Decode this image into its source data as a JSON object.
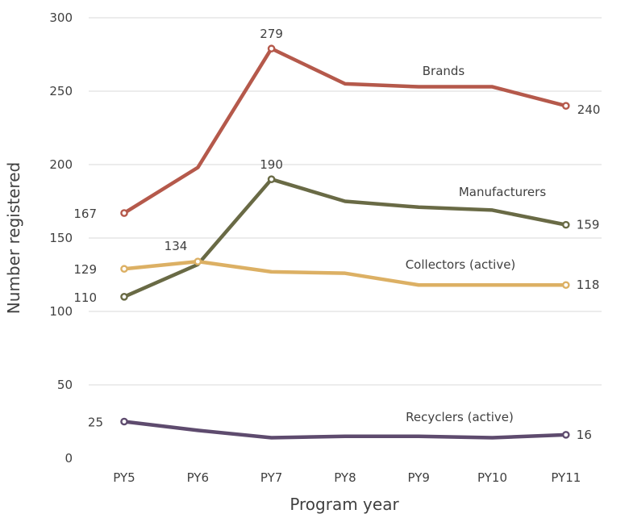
{
  "chart_data": {
    "type": "line",
    "xlabel": "Program year",
    "ylabel": "Number registered",
    "ylim": [
      0,
      300
    ],
    "yticks": [
      0,
      50,
      100,
      150,
      200,
      250,
      300
    ],
    "grid": true,
    "legend": "none",
    "categories": [
      "PY5",
      "PY6",
      "PY7",
      "PY8",
      "PY9",
      "PY10",
      "PY11"
    ],
    "series": [
      {
        "name": "Brands",
        "color": "#b5594b",
        "values": [
          167,
          198,
          279,
          255,
          253,
          253,
          240
        ],
        "labels": [
          {
            "i": 0,
            "text": "167"
          },
          {
            "i": 2,
            "text": "279"
          },
          {
            "i": 6,
            "text": "240"
          }
        ]
      },
      {
        "name": "Manufacturers",
        "color": "#696a45",
        "values": [
          110,
          132,
          190,
          175,
          171,
          169,
          159
        ],
        "labels": [
          {
            "i": 0,
            "text": "110"
          },
          {
            "i": 2,
            "text": "190"
          },
          {
            "i": 6,
            "text": "159"
          }
        ]
      },
      {
        "name": "Collectors (active)",
        "color": "#dcb064",
        "values": [
          129,
          134,
          127,
          126,
          118,
          118,
          118
        ],
        "labels": [
          {
            "i": 0,
            "text": "129"
          },
          {
            "i": 1,
            "text": "134"
          },
          {
            "i": 6,
            "text": "118"
          }
        ]
      },
      {
        "name": "Recyclers (active)",
        "color": "#5e4b6e",
        "values": [
          25,
          19,
          14,
          15,
          15,
          14,
          16
        ],
        "labels": [
          {
            "i": 0,
            "text": "25"
          },
          {
            "i": 6,
            "text": "16"
          }
        ]
      }
    ]
  }
}
